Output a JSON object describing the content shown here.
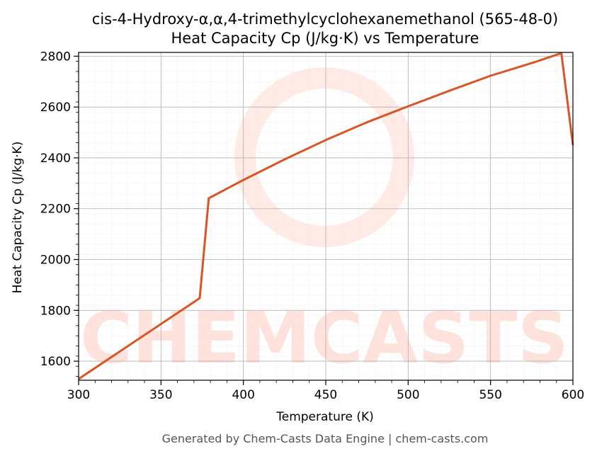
{
  "title_line1": "cis-4-Hydroxy-α,α,4-trimethylcyclohexanemethanol (565-48-0)",
  "title_line2": "Heat Capacity Cp (J/kg·K) vs Temperature",
  "footer": "Generated by Chem-Casts Data Engine | chem-casts.com",
  "watermark": "CHEMCASTS",
  "colors": {
    "line": "#d95525",
    "grid_major": "#b0b0b0",
    "grid_minor": "#e6e6e6",
    "watermark": "#ffd9d0"
  },
  "chart_data": {
    "type": "line",
    "xlabel": "Temperature (K)",
    "ylabel": "Heat Capacity Cp (J/kg·K)",
    "xlim": [
      300,
      600
    ],
    "ylim": [
      1525,
      2815
    ],
    "xticks": [
      300,
      350,
      400,
      450,
      500,
      550,
      600
    ],
    "yticks": [
      1600,
      1800,
      2000,
      2200,
      2400,
      2600,
      2800
    ],
    "grid": true,
    "series": [
      {
        "x": [
          300,
          373.5,
          379,
          400,
          425,
          450,
          475,
          500,
          525,
          550,
          575,
          593,
          600
        ],
        "y": [
          1530,
          1848,
          2241,
          2313,
          2394,
          2470,
          2540,
          2603,
          2664,
          2723,
          2773,
          2812,
          2450
        ]
      }
    ]
  }
}
